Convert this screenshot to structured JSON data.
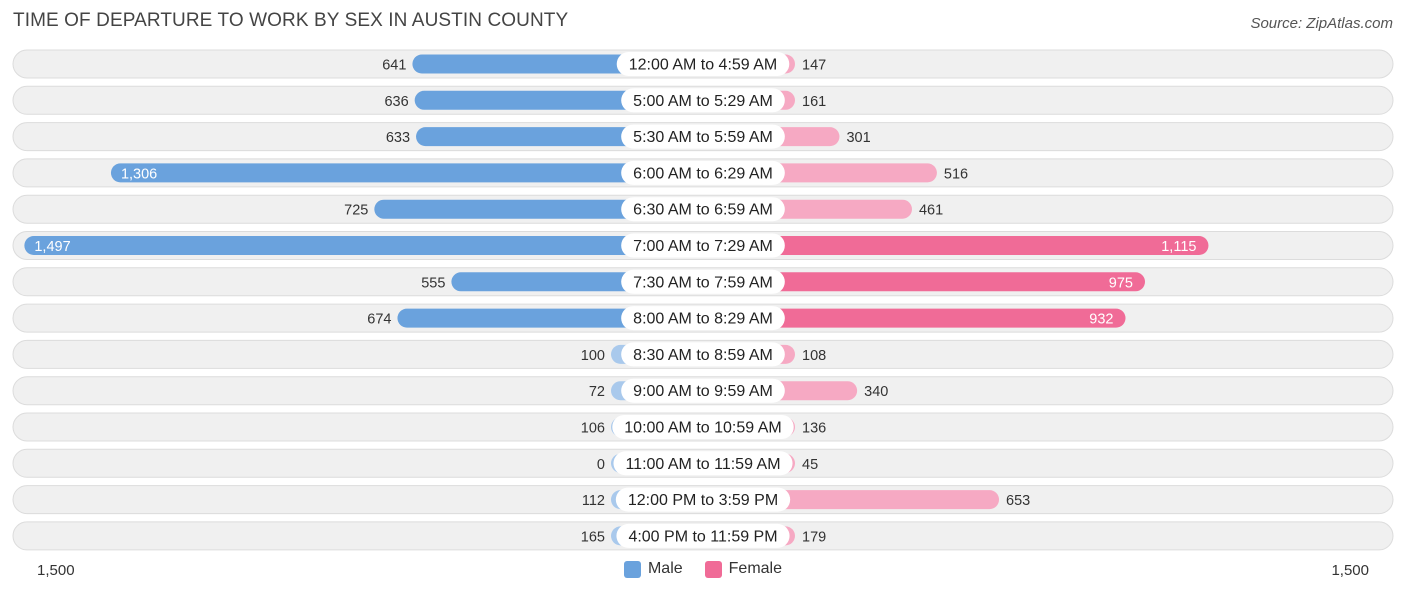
{
  "header": {
    "title": "TIME OF DEPARTURE TO WORK BY SEX IN AUSTIN COUNTY",
    "source": "Source: ZipAtlas.com"
  },
  "axis": {
    "left_label": "1,500",
    "right_label": "1,500"
  },
  "legend": {
    "male_label": "Male",
    "female_label": "Female"
  },
  "colors": {
    "male_strong": "#6aa2dd",
    "male_light": "#a9c9ec",
    "female_strong": "#f06b97",
    "female_light": "#f6a9c3",
    "row_bg": "#f0f0f0",
    "row_border": "#dcdcdc"
  },
  "chart_data": {
    "type": "bar",
    "orientation": "horizontal-diverging",
    "title": "TIME OF DEPARTURE TO WORK BY SEX IN AUSTIN COUNTY",
    "xlim": [
      -1500,
      1500
    ],
    "categories": [
      "12:00 AM to 4:59 AM",
      "5:00 AM to 5:29 AM",
      "5:30 AM to 5:59 AM",
      "6:00 AM to 6:29 AM",
      "6:30 AM to 6:59 AM",
      "7:00 AM to 7:29 AM",
      "7:30 AM to 7:59 AM",
      "8:00 AM to 8:29 AM",
      "8:30 AM to 8:59 AM",
      "9:00 AM to 9:59 AM",
      "10:00 AM to 10:59 AM",
      "11:00 AM to 11:59 AM",
      "12:00 PM to 3:59 PM",
      "4:00 PM to 11:59 PM"
    ],
    "series": [
      {
        "name": "Male",
        "values": [
          641,
          636,
          633,
          1306,
          725,
          1497,
          555,
          674,
          100,
          72,
          106,
          0,
          112,
          165
        ],
        "labels": [
          "641",
          "636",
          "633",
          "1,306",
          "725",
          "1,497",
          "555",
          "674",
          "100",
          "72",
          "106",
          "0",
          "112",
          "165"
        ]
      },
      {
        "name": "Female",
        "values": [
          147,
          161,
          301,
          516,
          461,
          1115,
          975,
          932,
          108,
          340,
          136,
          45,
          653,
          179
        ],
        "labels": [
          "147",
          "161",
          "301",
          "516",
          "461",
          "1,115",
          "975",
          "932",
          "108",
          "340",
          "136",
          "45",
          "653",
          "179"
        ]
      }
    ]
  }
}
